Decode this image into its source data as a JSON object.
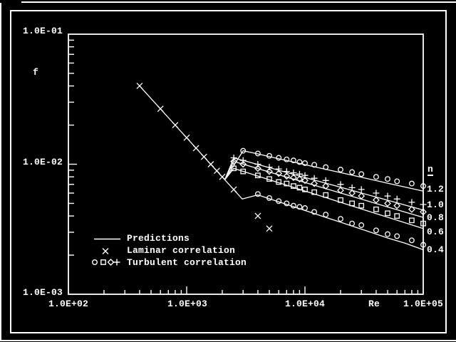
{
  "window": {
    "bg": "#000000",
    "fg": "#ffffff"
  },
  "y_axis": {
    "label": "f",
    "tick_labels": [
      "1.0E-01",
      "1.0E-02",
      "1.0E-03"
    ]
  },
  "x_axis": {
    "label": "Re",
    "tick_labels": [
      "1.0E+02",
      "1.0E+03",
      "1.0E+04",
      "1.0E+05"
    ]
  },
  "right_panel": {
    "header": "n",
    "values": [
      "1.2",
      "1.0",
      "0.8",
      "0.6",
      "0.4"
    ]
  },
  "legend": {
    "items": [
      {
        "sample": "line",
        "label": "Predictions"
      },
      {
        "sample": "x",
        "label": "Laminar correlation"
      },
      {
        "sample": "circle square diamond plus",
        "label": "Turbulent correlation"
      }
    ]
  },
  "chart_data": {
    "type": "line",
    "xlabel": "Re",
    "ylabel": "f",
    "xscale": "log",
    "yscale": "log",
    "xlim": [
      100,
      100000
    ],
    "ylim": [
      0.001,
      0.1
    ],
    "x_tick_labels": [
      "1.0E+02",
      "1.0E+03",
      "1.0E+04",
      "1.0E+05"
    ],
    "y_tick_labels": [
      "1.0E-01",
      "1.0E-02",
      "1.0E-03"
    ],
    "grid": false,
    "legend_position": "lower-left",
    "prediction_lines": [
      {
        "n": "laminar",
        "points": [
          [
            400,
            0.04
          ],
          [
            2100,
            0.0076
          ]
        ]
      },
      {
        "n": "1.2",
        "points": [
          [
            2100,
            0.0076
          ],
          [
            3000,
            0.0127
          ],
          [
            4000,
            0.012
          ],
          [
            5000,
            0.01144
          ],
          [
            7000,
            0.01068
          ],
          [
            10000,
            0.00993
          ],
          [
            15000,
            0.00914
          ],
          [
            20000,
            0.00862
          ],
          [
            30000,
            0.00794
          ],
          [
            50000,
            0.00715
          ],
          [
            70000,
            0.00668
          ],
          [
            100000,
            0.00621
          ]
        ]
      },
      {
        "n": "1.0",
        "points": [
          [
            2100,
            0.0076
          ],
          [
            2500,
            0.01119
          ],
          [
            3000,
            0.0107
          ],
          [
            4000,
            0.00995
          ],
          [
            5000,
            0.00941
          ],
          [
            7000,
            0.00865
          ],
          [
            10000,
            0.00791
          ],
          [
            15000,
            0.00715
          ],
          [
            20000,
            0.00665
          ],
          [
            30000,
            0.00601
          ],
          [
            50000,
            0.00529
          ],
          [
            70000,
            0.00486
          ],
          [
            100000,
            0.00445
          ]
        ]
      },
      {
        "n": "0.8",
        "points": [
          [
            2100,
            0.0076
          ],
          [
            2500,
            0.01051
          ],
          [
            3000,
            0.01001
          ],
          [
            4000,
            0.00926
          ],
          [
            5000,
            0.00872
          ],
          [
            7000,
            0.00796
          ],
          [
            10000,
            0.00724
          ],
          [
            15000,
            0.00649
          ],
          [
            20000,
            0.00601
          ],
          [
            30000,
            0.00539
          ],
          [
            50000,
            0.00469
          ],
          [
            70000,
            0.00429
          ],
          [
            100000,
            0.0039
          ]
        ]
      },
      {
        "n": "0.6",
        "points": [
          [
            2100,
            0.0076
          ],
          [
            2500,
            0.00928
          ],
          [
            3000,
            0.00881
          ],
          [
            4000,
            0.00811
          ],
          [
            5000,
            0.0076
          ],
          [
            7000,
            0.0069
          ],
          [
            10000,
            0.00622
          ],
          [
            15000,
            0.00554
          ],
          [
            20000,
            0.00509
          ],
          [
            30000,
            0.00453
          ],
          [
            50000,
            0.00391
          ],
          [
            70000,
            0.00355
          ],
          [
            100000,
            0.0032
          ]
        ]
      },
      {
        "n": "0.4",
        "points": [
          [
            2100,
            0.0076
          ],
          [
            2950,
            0.0054
          ],
          [
            4000,
            0.00581
          ],
          [
            5000,
            0.00543
          ],
          [
            7000,
            0.00491
          ],
          [
            10000,
            0.00441
          ],
          [
            15000,
            0.0039
          ],
          [
            20000,
            0.00358
          ],
          [
            30000,
            0.00317
          ],
          [
            50000,
            0.00271
          ],
          [
            70000,
            0.00247
          ],
          [
            100000,
            0.0022
          ]
        ]
      }
    ],
    "correlation_points": [
      {
        "name": "Laminar correlation",
        "n": "laminar",
        "marker": "x",
        "points": [
          [
            400,
            0.04
          ],
          [
            600,
            0.0267
          ],
          [
            800,
            0.02
          ],
          [
            1000,
            0.016
          ],
          [
            1200,
            0.0133
          ],
          [
            1400,
            0.0114
          ],
          [
            1600,
            0.01
          ],
          [
            1800,
            0.0089
          ],
          [
            2000,
            0.008
          ],
          [
            2500,
            0.0064
          ],
          [
            4000,
            0.004
          ],
          [
            5000,
            0.0032
          ]
        ]
      },
      {
        "name": "Turbulent correlation n=1.2",
        "n": "1.2",
        "marker": "circle",
        "points": [
          [
            3000,
            0.0127
          ],
          [
            4000,
            0.0121
          ],
          [
            5000,
            0.0116
          ],
          [
            6000,
            0.0112
          ],
          [
            7000,
            0.0109
          ],
          [
            8000,
            0.0107
          ],
          [
            9000,
            0.0104
          ],
          [
            10000,
            0.0102
          ],
          [
            12000,
            0.0099
          ],
          [
            15000,
            0.0095
          ],
          [
            20000,
            0.0091
          ],
          [
            25000,
            0.0087
          ],
          [
            30000,
            0.0084
          ],
          [
            40000,
            0.008
          ],
          [
            50000,
            0.0077
          ],
          [
            60000,
            0.0074
          ],
          [
            80000,
            0.0071
          ],
          [
            100000,
            0.0068
          ]
        ]
      },
      {
        "name": "Turbulent correlation n=1.0",
        "n": "1.0",
        "marker": "plus",
        "points": [
          [
            2500,
            0.0112
          ],
          [
            3000,
            0.0107
          ],
          [
            4000,
            0.01
          ],
          [
            5000,
            0.0095
          ],
          [
            6000,
            0.0092
          ],
          [
            7000,
            0.0088
          ],
          [
            8000,
            0.0086
          ],
          [
            9000,
            0.0084
          ],
          [
            10000,
            0.0082
          ],
          [
            12000,
            0.0078
          ],
          [
            15000,
            0.0075
          ],
          [
            20000,
            0.007
          ],
          [
            25000,
            0.0066
          ],
          [
            30000,
            0.0064
          ],
          [
            40000,
            0.006
          ],
          [
            50000,
            0.0057
          ],
          [
            60000,
            0.0054
          ],
          [
            80000,
            0.0051
          ],
          [
            100000,
            0.0049
          ]
        ]
      },
      {
        "name": "Turbulent correlation n=0.8",
        "n": "0.8",
        "marker": "diamond",
        "points": [
          [
            2500,
            0.0105
          ],
          [
            3000,
            0.01
          ],
          [
            4000,
            0.0093
          ],
          [
            5000,
            0.0088
          ],
          [
            6000,
            0.0085
          ],
          [
            7000,
            0.0081
          ],
          [
            8000,
            0.0079
          ],
          [
            9000,
            0.0077
          ],
          [
            10000,
            0.0075
          ],
          [
            12000,
            0.0071
          ],
          [
            15000,
            0.0068
          ],
          [
            20000,
            0.0063
          ],
          [
            25000,
            0.006
          ],
          [
            30000,
            0.0057
          ],
          [
            40000,
            0.0053
          ],
          [
            50000,
            0.005
          ],
          [
            60000,
            0.0048
          ],
          [
            80000,
            0.0045
          ],
          [
            100000,
            0.0043
          ]
        ]
      },
      {
        "name": "Turbulent correlation n=0.6",
        "n": "0.6",
        "marker": "square",
        "points": [
          [
            2500,
            0.0093
          ],
          [
            3000,
            0.0088
          ],
          [
            4000,
            0.0082
          ],
          [
            5000,
            0.0077
          ],
          [
            6000,
            0.0073
          ],
          [
            7000,
            0.0071
          ],
          [
            8000,
            0.0068
          ],
          [
            9000,
            0.0066
          ],
          [
            10000,
            0.0064
          ],
          [
            12000,
            0.0061
          ],
          [
            15000,
            0.0058
          ],
          [
            20000,
            0.0053
          ],
          [
            25000,
            0.005
          ],
          [
            30000,
            0.0048
          ],
          [
            40000,
            0.0045
          ],
          [
            50000,
            0.0042
          ],
          [
            60000,
            0.004
          ],
          [
            80000,
            0.0037
          ],
          [
            100000,
            0.0035
          ]
        ]
      },
      {
        "name": "Turbulent correlation n=0.4",
        "n": "0.4",
        "marker": "circle",
        "points": [
          [
            4000,
            0.0059
          ],
          [
            5000,
            0.0055
          ],
          [
            6000,
            0.0052
          ],
          [
            7000,
            0.005
          ],
          [
            8000,
            0.0048
          ],
          [
            9000,
            0.0047
          ],
          [
            10000,
            0.0046
          ],
          [
            12000,
            0.0043
          ],
          [
            15000,
            0.0041
          ],
          [
            20000,
            0.0038
          ],
          [
            25000,
            0.0035
          ],
          [
            30000,
            0.0034
          ],
          [
            40000,
            0.0031
          ],
          [
            50000,
            0.0029
          ],
          [
            60000,
            0.0028
          ],
          [
            80000,
            0.0026
          ],
          [
            100000,
            0.0024
          ]
        ]
      }
    ]
  }
}
